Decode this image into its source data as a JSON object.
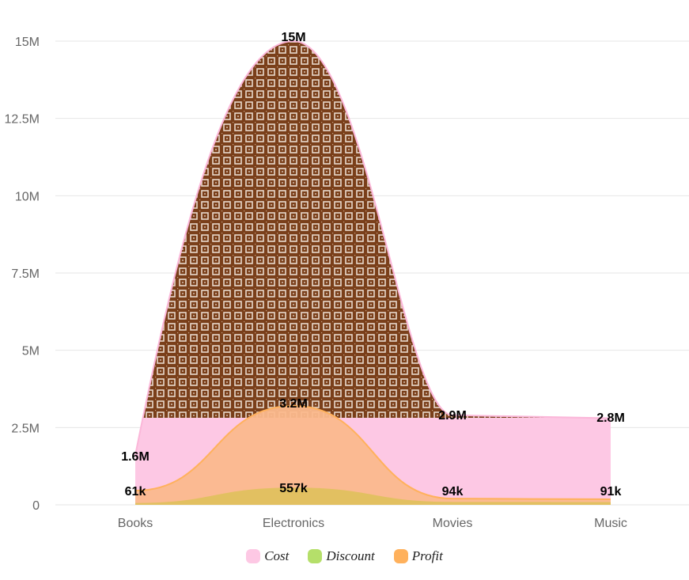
{
  "chart_data": {
    "type": "area",
    "title": "",
    "xlabel": "",
    "ylabel": "",
    "categories": [
      "Books",
      "Electronics",
      "Movies",
      "Music"
    ],
    "ylim": [
      0,
      15000000
    ],
    "y_ticks": [
      "0",
      "2.5M",
      "5M",
      "7.5M",
      "10M",
      "12.5M",
      "15M"
    ],
    "y_tick_values": [
      0,
      2500000,
      5000000,
      7500000,
      10000000,
      12500000,
      15000000
    ],
    "grid": true,
    "legend_position": "bottom",
    "series": [
      {
        "name": "Cost",
        "color": "#fdc8e4",
        "pattern": "brown squares",
        "values": [
          1600000,
          15000000,
          2900000,
          2800000
        ],
        "labels": [
          "1.6M",
          "15M",
          "2.9M",
          "2.8M"
        ]
      },
      {
        "name": "Discount",
        "color": "#b5df6a",
        "values": [
          61000,
          557000,
          94000,
          91000
        ],
        "labels": [
          "61k",
          "557k",
          "94k",
          "91k"
        ]
      },
      {
        "name": "Profit",
        "color": "#ffb15c",
        "values": [
          460000,
          3200000,
          200000,
          180000
        ],
        "labels": [
          "",
          "3.2M",
          "",
          ""
        ]
      }
    ]
  },
  "legend": {
    "items": [
      {
        "label": "Cost",
        "color": "#fdc8e4"
      },
      {
        "label": "Discount",
        "color": "#b5df6a"
      },
      {
        "label": "Profit",
        "color": "#ffb15c"
      }
    ]
  }
}
